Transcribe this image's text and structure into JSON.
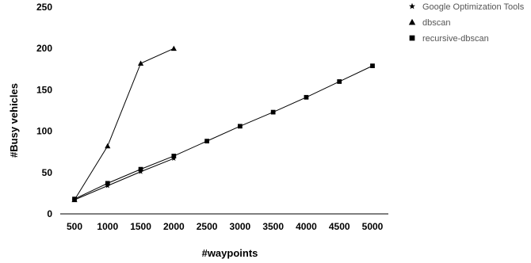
{
  "chart_data": {
    "type": "line",
    "title": "",
    "xlabel": "#waypoints",
    "ylabel": "#Busy vehicles",
    "x": [
      500,
      1000,
      1500,
      2000,
      2500,
      3000,
      3500,
      4000,
      4500,
      5000
    ],
    "x_tick_labels": [
      "500",
      "1000",
      "1500",
      "2000",
      "2500",
      "3000",
      "3500",
      "4000",
      "4500",
      "5000"
    ],
    "ylim": [
      0,
      250
    ],
    "y_ticks": [
      0,
      50,
      100,
      150,
      200,
      250
    ],
    "y_tick_labels": [
      "0",
      "50",
      "100",
      "150",
      "200",
      "250"
    ],
    "grid": false,
    "legend_position": "top-right",
    "series": [
      {
        "name": "Google Optimization Tools",
        "marker": "star",
        "color": "#000000",
        "x": [
          500,
          1000,
          1500,
          2000
        ],
        "y": [
          17,
          34,
          51,
          67
        ]
      },
      {
        "name": "dbscan",
        "marker": "triangle",
        "color": "#000000",
        "x": [
          500,
          1000,
          1500,
          2000
        ],
        "y": [
          17,
          82,
          182,
          200
        ]
      },
      {
        "name": "recursive-dbscan",
        "marker": "square",
        "color": "#000000",
        "x": [
          500,
          1000,
          1500,
          2000,
          2500,
          3000,
          3500,
          4000,
          4500,
          5000
        ],
        "y": [
          18,
          37,
          54,
          70,
          88,
          106,
          123,
          141,
          160,
          179
        ]
      }
    ]
  }
}
